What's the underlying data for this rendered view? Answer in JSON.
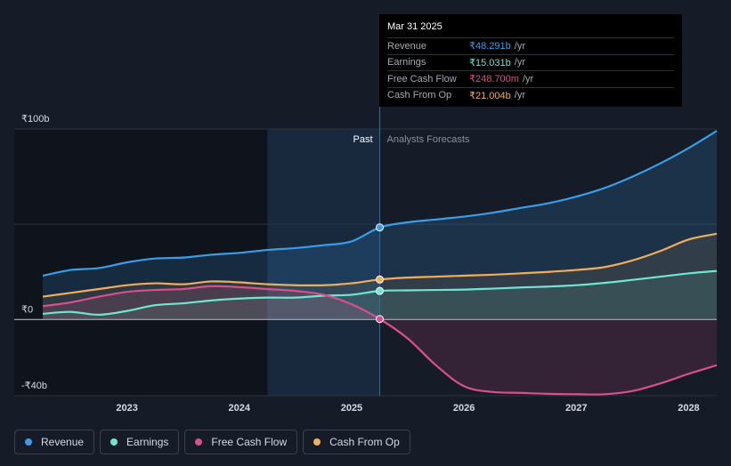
{
  "tooltip": {
    "date": "Mar 31 2025",
    "rows": [
      {
        "label": "Revenue",
        "value": "₹48.291b",
        "unit": "/yr",
        "color": "#3b9ce8"
      },
      {
        "label": "Earnings",
        "value": "₹15.031b",
        "unit": "/yr",
        "color": "#6ee7d0"
      },
      {
        "label": "Free Cash Flow",
        "value": "₹248.700m",
        "unit": "/yr",
        "color": "#d94f8e"
      },
      {
        "label": "Cash From Op",
        "value": "₹21.004b",
        "unit": "/yr",
        "color": "#f0ad5c"
      }
    ]
  },
  "legend": [
    {
      "label": "Revenue",
      "color": "#3b9ce8"
    },
    {
      "label": "Earnings",
      "color": "#6ee7d0"
    },
    {
      "label": "Free Cash Flow",
      "color": "#d94f8e"
    },
    {
      "label": "Cash From Op",
      "color": "#f0ad5c"
    }
  ],
  "chart_data": {
    "type": "line",
    "title": "",
    "xlabel": "",
    "ylabel": "",
    "ylim": [
      -40,
      100
    ],
    "xlim": [
      2022.25,
      2028.25
    ],
    "y_tick_labels": [
      {
        "value": 100,
        "label": "₹100b"
      },
      {
        "value": 0,
        "label": "₹0"
      },
      {
        "value": -40,
        "label": "-₹40b"
      }
    ],
    "x_ticks": [
      2023,
      2024,
      2025,
      2026,
      2027,
      2028
    ],
    "x_tick_labels": [
      "2023",
      "2024",
      "2025",
      "2026",
      "2027",
      "2028"
    ],
    "divider_x": 2025.25,
    "highlight_start_x": 2024.25,
    "past_label": "Past",
    "forecast_label": "Analysts Forecasts",
    "grid": true,
    "legend_position": "bottom-left",
    "series": [
      {
        "name": "Revenue",
        "color": "#3b9ce8",
        "x": [
          2022.25,
          2022.5,
          2022.75,
          2023.0,
          2023.25,
          2023.5,
          2023.75,
          2024.0,
          2024.25,
          2024.5,
          2024.75,
          2025.0,
          2025.25,
          2025.5,
          2025.75,
          2026.0,
          2026.25,
          2026.5,
          2026.75,
          2027.0,
          2027.25,
          2027.5,
          2027.75,
          2028.0,
          2028.25
        ],
        "values": [
          23,
          26,
          27,
          30,
          32,
          32.5,
          34,
          35,
          36.5,
          37.5,
          39,
          41,
          48.3,
          51,
          52.5,
          54,
          56,
          58.5,
          61,
          64.5,
          69,
          75,
          82,
          90,
          99
        ]
      },
      {
        "name": "Earnings",
        "color": "#6ee7d0",
        "x": [
          2022.25,
          2022.5,
          2022.75,
          2023.0,
          2023.25,
          2023.5,
          2023.75,
          2024.0,
          2024.25,
          2024.5,
          2024.75,
          2025.0,
          2025.25,
          2025.5,
          2025.75,
          2026.0,
          2026.25,
          2026.5,
          2026.75,
          2027.0,
          2027.25,
          2027.5,
          2027.75,
          2028.0,
          2028.25
        ],
        "values": [
          3,
          4,
          2.5,
          4.5,
          7.5,
          8.5,
          10,
          11,
          11.5,
          11.5,
          12.5,
          13,
          15,
          15.3,
          15.5,
          15.7,
          16.2,
          16.8,
          17.3,
          18,
          19.2,
          20.8,
          22.5,
          24.2,
          25.5
        ]
      },
      {
        "name": "Free Cash Flow",
        "color": "#d94f8e",
        "x": [
          2022.25,
          2022.5,
          2022.75,
          2023.0,
          2023.25,
          2023.5,
          2023.75,
          2024.0,
          2024.25,
          2024.5,
          2024.75,
          2025.0,
          2025.25,
          2025.5,
          2025.75,
          2026.0,
          2026.25,
          2026.5,
          2026.75,
          2027.0,
          2027.25,
          2027.5,
          2027.75,
          2028.0,
          2028.25
        ],
        "values": [
          7,
          9,
          12,
          14.5,
          15.5,
          16,
          17.5,
          17,
          16,
          15,
          13,
          8,
          0.25,
          -10,
          -24,
          -35,
          -38,
          -38.5,
          -39,
          -39.2,
          -39.2,
          -37.5,
          -33.5,
          -28.5,
          -24
        ]
      },
      {
        "name": "Cash From Op",
        "color": "#f0ad5c",
        "x": [
          2022.25,
          2022.5,
          2022.75,
          2023.0,
          2023.25,
          2023.5,
          2023.75,
          2024.0,
          2024.25,
          2024.5,
          2024.75,
          2025.0,
          2025.25,
          2025.5,
          2025.75,
          2026.0,
          2026.25,
          2026.5,
          2026.75,
          2027.0,
          2027.25,
          2027.5,
          2027.75,
          2028.0,
          2028.25
        ],
        "values": [
          12,
          14,
          16,
          18,
          19,
          18.5,
          20,
          19.5,
          18.5,
          18,
          18,
          19,
          21,
          22,
          22.5,
          23,
          23.5,
          24.2,
          25,
          26,
          27.5,
          31,
          36,
          42,
          45
        ]
      }
    ]
  }
}
